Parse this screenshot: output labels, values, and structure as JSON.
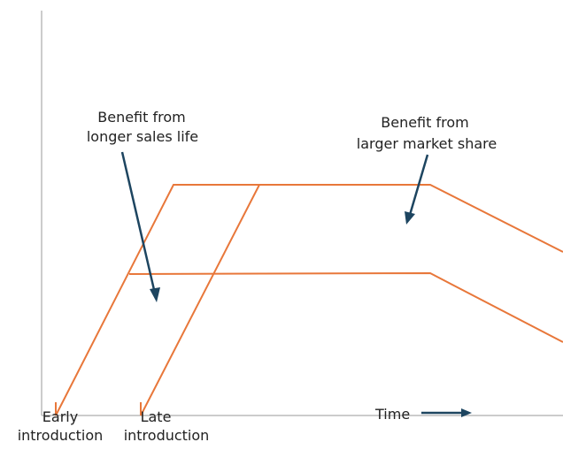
{
  "labels": {
    "early_line1": "Early",
    "early_line2": "introduction",
    "late_line1": "Late",
    "late_line2": "introduction",
    "time": "Time",
    "sales_life_line1": "Benefit from",
    "sales_life_line2": "longer sales life",
    "market_share_line1": "Benefit from",
    "market_share_line2": "larger market share"
  },
  "colors": {
    "curve": "#e8773a",
    "arrow": "#1d4560",
    "axis": "#bbbbbb"
  }
}
